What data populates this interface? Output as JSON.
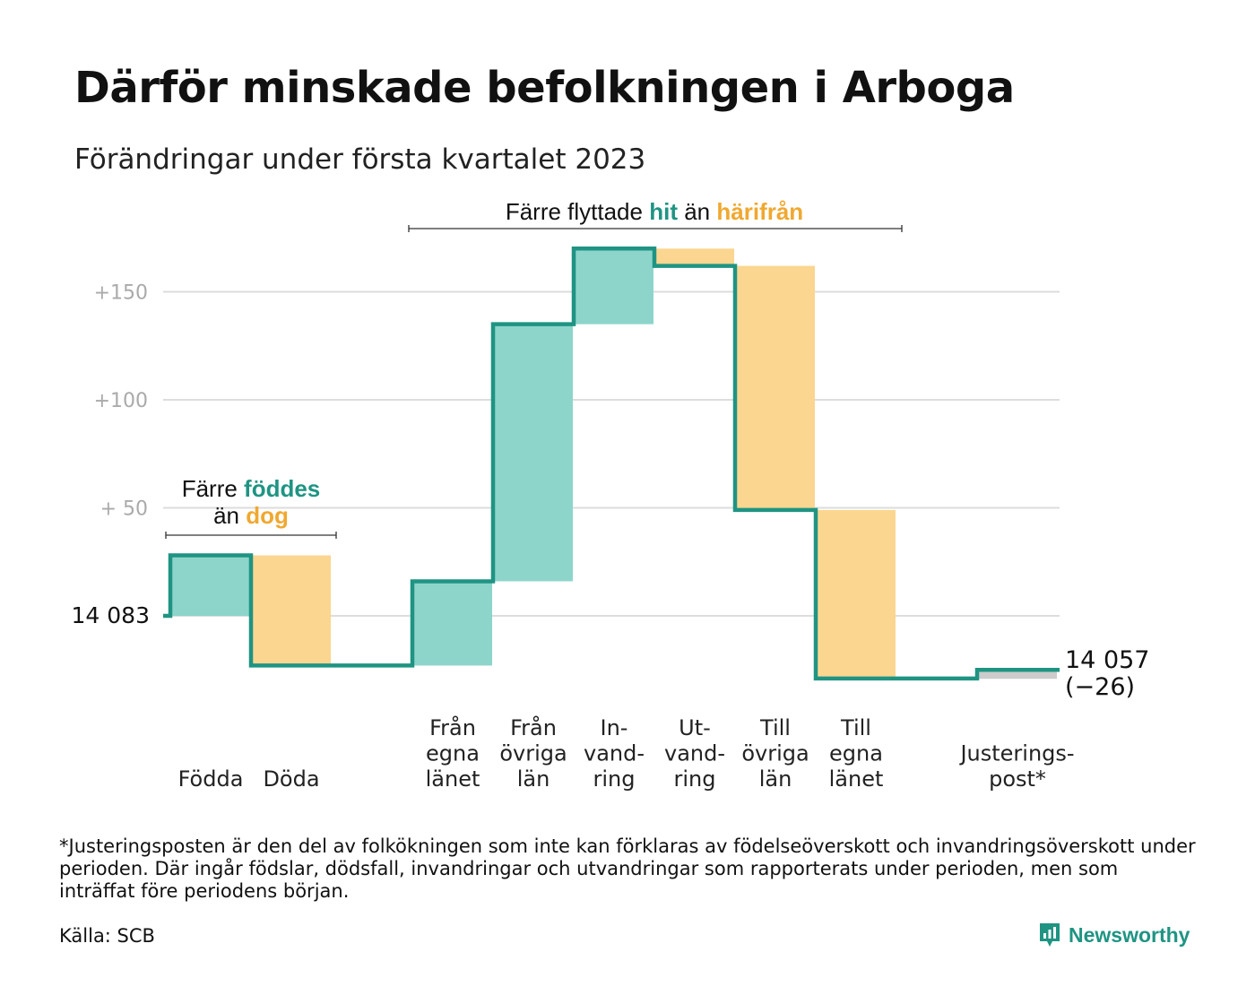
{
  "title": "Därför minskade befolkningen i Arboga",
  "subtitle": "Förändringar under första kvartalet 2023",
  "footnote": "*Justeringsposten är den del av folkökningen som inte kan förklaras av födelseöverskott och invandringsöverskott under perioden. Där ingår födslar, dödsfall, invandringar och utvandringar som rapporterats under perioden, men som inträffat före periodens början.",
  "source": "Källa: SCB",
  "brand": "Newsworthy",
  "annotations": {
    "births": {
      "line1_pre": "Färre ",
      "line1_hl": "föddes",
      "line2_pre": "än ",
      "line2_hl": "dog"
    },
    "moves": {
      "pre": "Färre flyttade ",
      "hl1": "hit",
      "mid": " än ",
      "hl2": "härifrån"
    }
  },
  "colors": {
    "increase": "#8dd5ca",
    "decrease": "#fbd690",
    "adjust": "#cccccc",
    "line": "#1f9483",
    "teal_text": "#1f9483",
    "orange_text": "#f0a830"
  },
  "chart_data": {
    "type": "bar",
    "subtype": "waterfall",
    "start_value": 14083,
    "start_label": "14 083",
    "end_value": 14057,
    "end_label": "14 057",
    "end_change_label": "(−26)",
    "y_ticks": [
      {
        "value": 150,
        "label": "+150"
      },
      {
        "value": 100,
        "label": "+100"
      },
      {
        "value": 50,
        "label": "+ 50"
      },
      {
        "value": 0,
        "label": "14 083"
      }
    ],
    "ylim": [
      -32,
      170
    ],
    "grid": true,
    "steps": [
      {
        "category": "Födda",
        "label_lines": [
          "Födda"
        ],
        "delta": 28,
        "kind": "increase"
      },
      {
        "category": "Döda",
        "label_lines": [
          "Döda"
        ],
        "delta": -51,
        "kind": "decrease"
      },
      {
        "category": "",
        "label_lines": [],
        "delta": 0,
        "kind": "gap"
      },
      {
        "category": "Från egna länet",
        "label_lines": [
          "Från",
          "egna",
          "länet"
        ],
        "delta": 39,
        "kind": "increase"
      },
      {
        "category": "Från övriga län",
        "label_lines": [
          "Från",
          "övriga",
          "län"
        ],
        "delta": 119,
        "kind": "increase"
      },
      {
        "category": "Invandring",
        "label_lines": [
          "In-",
          "vand-",
          "ring"
        ],
        "delta": 35,
        "kind": "increase"
      },
      {
        "category": "Utvandring",
        "label_lines": [
          "Ut-",
          "vand-",
          "ring"
        ],
        "delta": -8,
        "kind": "decrease"
      },
      {
        "category": "Till övriga län",
        "label_lines": [
          "Till",
          "övriga",
          "län"
        ],
        "delta": -113,
        "kind": "decrease"
      },
      {
        "category": "Till egna länet",
        "label_lines": [
          "Till",
          "egna",
          "länet"
        ],
        "delta": -78,
        "kind": "decrease"
      },
      {
        "category": "",
        "label_lines": [],
        "delta": 0,
        "kind": "gap"
      },
      {
        "category": "Justeringspost*",
        "label_lines": [
          "Justerings-",
          "post*"
        ],
        "delta": 4,
        "kind": "adjust"
      }
    ]
  }
}
